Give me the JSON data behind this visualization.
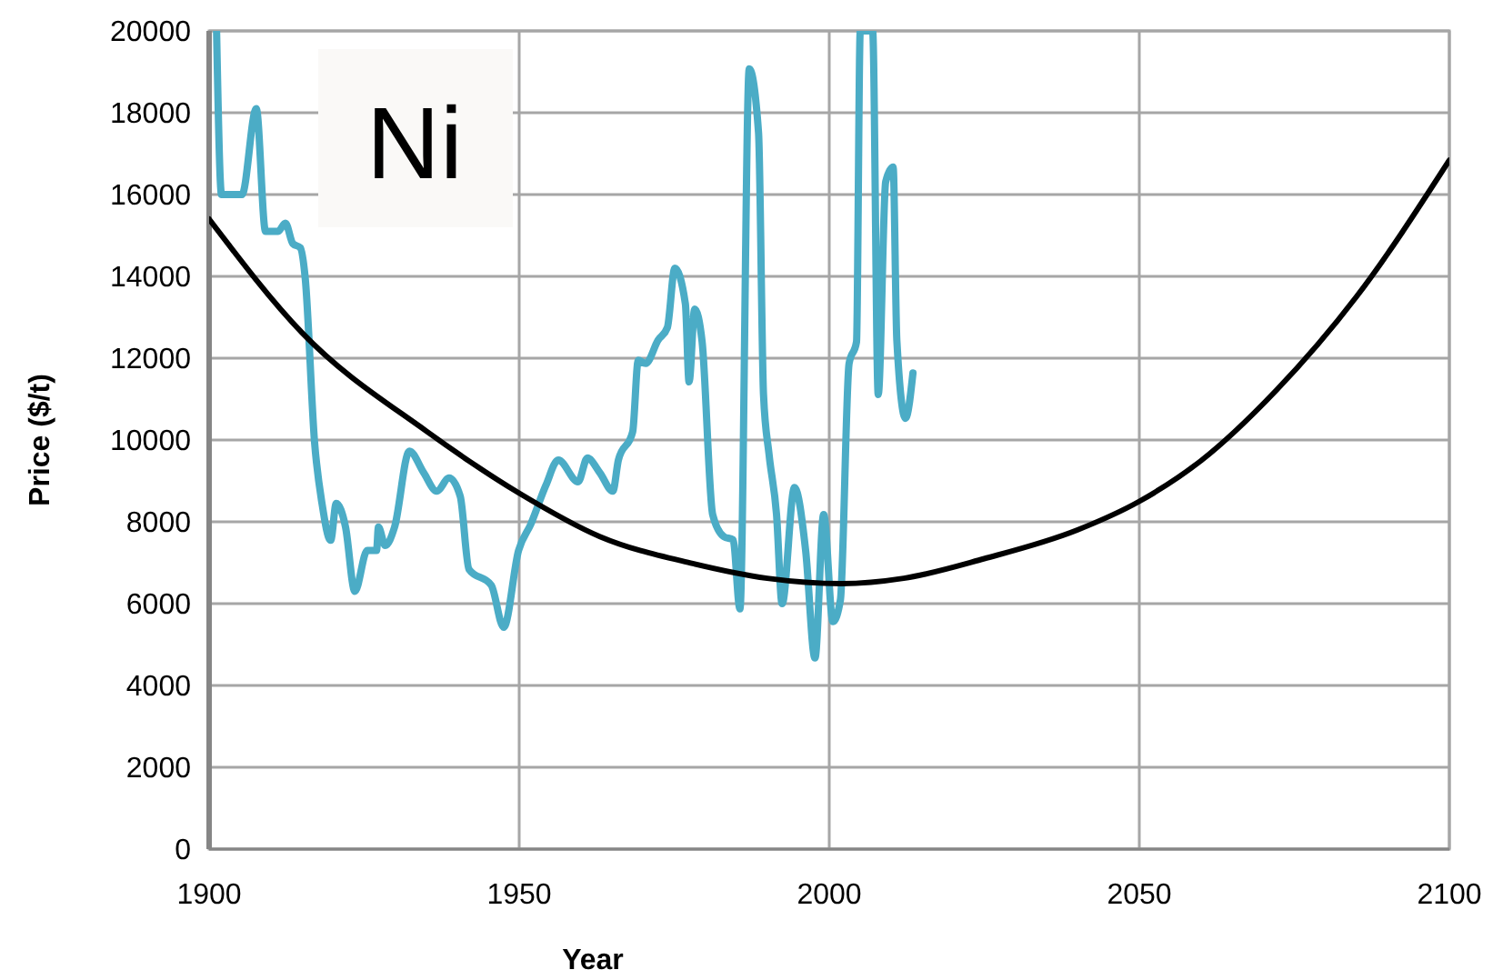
{
  "chart_data": {
    "type": "line",
    "xlabel": "Year",
    "ylabel": "Price ($/t)",
    "annotations": [
      "Ni"
    ],
    "xlim": [
      1900,
      2100
    ],
    "xticks": [
      1900,
      1950,
      2000,
      2050,
      2100
    ],
    "ylim": [
      0,
      20000
    ],
    "yticks": [
      0,
      2000,
      4000,
      6000,
      8000,
      10000,
      12000,
      14000,
      16000,
      18000,
      20000
    ],
    "grid": true,
    "marker": "none",
    "line_style": "solid",
    "series": [
      {
        "color": "#4bacc6",
        "x": [
          1901.2,
          1902,
          1905.3,
          1907.6,
          1909.1,
          1911.1,
          1912.3,
          1913.5,
          1914.7,
          1915.5,
          1917,
          1918.2,
          1919.6,
          1920.5,
          1922,
          1923.5,
          1925.5,
          1927,
          1927.3,
          1928.4,
          1929.9,
          1932.3,
          1934.6,
          1936.7,
          1938.7,
          1940.5,
          1941.9,
          1945.5,
          1947.5,
          1949.9,
          1951.9,
          1954.3,
          1956.3,
          1959.5,
          1961,
          1963,
          1965.1,
          1966,
          1968.3,
          1969.2,
          1970.4,
          1972.4,
          1973.9,
          1975.1,
          1976.8,
          1977.4,
          1978.3,
          1979.5,
          1981.2,
          1983,
          1984.5,
          1985.6,
          1987.1,
          1988.6,
          1989.4,
          1990.3,
          1991.5,
          1992.4,
          1994.4,
          1996.2,
          1997.7,
          1999.1,
          2000.6,
          2001.8,
          2003.2,
          2004.4,
          2005,
          2007,
          2007.9,
          2009.1,
          2010.3,
          2010.9,
          2012.3,
          2013.5
        ],
        "values": [
          20000,
          16000,
          16000,
          18100,
          15100,
          15100,
          15300,
          14800,
          14700,
          13950,
          9950,
          8450,
          7550,
          8450,
          7870,
          6300,
          7300,
          7300,
          7870,
          7420,
          7870,
          9730,
          9200,
          8750,
          9070,
          8620,
          6840,
          6450,
          5420,
          7300,
          7950,
          8890,
          9510,
          8980,
          9560,
          9200,
          8750,
          9510,
          10200,
          11950,
          11870,
          12440,
          12750,
          14200,
          13330,
          11420,
          13200,
          12400,
          8180,
          7640,
          7560,
          5870,
          19070,
          17510,
          11110,
          9640,
          8180,
          6000,
          8840,
          7290,
          4670,
          8180,
          5560,
          6090,
          11870,
          12400,
          20000,
          20000,
          11110,
          16310,
          16670,
          12440,
          10530,
          11640
        ]
      },
      {
        "color": "#000000",
        "x": [
          1900,
          1915,
          1935,
          1950,
          1963,
          1978,
          1990,
          2002,
          2012,
          2025,
          2040,
          2050,
          2060,
          2072,
          2085,
          2100
        ],
        "values": [
          15400,
          12620,
          10220,
          8700,
          7640,
          6980,
          6620,
          6490,
          6620,
          7100,
          7800,
          8500,
          9500,
          11200,
          13500,
          16840
        ]
      }
    ]
  }
}
